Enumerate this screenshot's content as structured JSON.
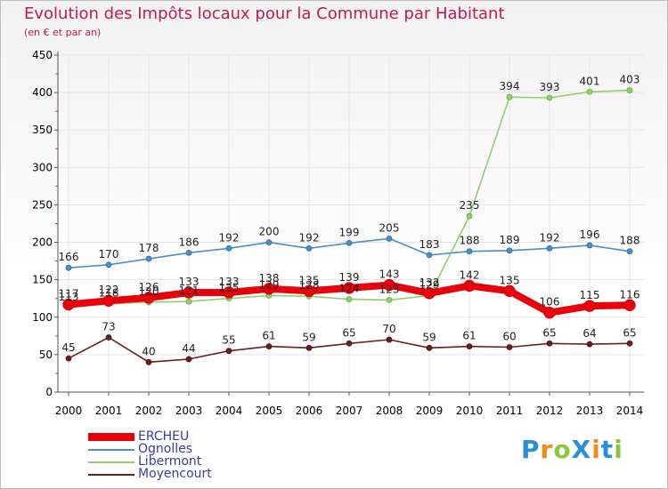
{
  "title": "Evolution des Impôts locaux pour la Commune par Habitant",
  "subtitle": "(en € et par an)",
  "logo": {
    "text": "ProXiti",
    "letters": [
      "P",
      "r",
      "o",
      "X",
      "i",
      "t",
      "i"
    ],
    "colors": [
      "#2a8fd6",
      "#f08a1c",
      "#8cc63f",
      "#2a8fd6",
      "#f08a1c",
      "#2a8fd6",
      "#8cc63f"
    ]
  },
  "chart_data": {
    "type": "line",
    "title": "Evolution des Impôts locaux pour la Commune par Habitant",
    "subtitle": "(en € et par an)",
    "xlabel": "",
    "ylabel": "",
    "x": [
      2000,
      2001,
      2002,
      2003,
      2004,
      2005,
      2006,
      2007,
      2008,
      2009,
      2010,
      2011,
      2012,
      2013,
      2014
    ],
    "ylim": [
      0,
      450
    ],
    "yticks": [
      0,
      50,
      100,
      150,
      200,
      250,
      300,
      350,
      400,
      450
    ],
    "grid": true,
    "legend_position": "bottom-left",
    "series": [
      {
        "name": "ERCHEU",
        "color": "#e8000b",
        "style": "thick",
        "values": [
          117,
          122,
          126,
          133,
          133,
          138,
          135,
          139,
          143,
          132,
          142,
          135,
          106,
          115,
          116
        ]
      },
      {
        "name": "Ognolles",
        "color": "#4a8fc9",
        "style": "thin",
        "values": [
          166,
          170,
          178,
          186,
          192,
          200,
          192,
          199,
          205,
          183,
          188,
          189,
          192,
          196,
          188
        ]
      },
      {
        "name": "Libermont",
        "color": "#8fd16a",
        "style": "thin",
        "values": [
          113,
          118,
          120,
          121,
          125,
          129,
          128,
          124,
          123,
          129,
          235,
          394,
          393,
          401,
          403
        ]
      },
      {
        "name": "Moyencourt",
        "color": "#6e1c1c",
        "style": "thin",
        "values": [
          45,
          73,
          40,
          44,
          55,
          61,
          59,
          65,
          70,
          59,
          61,
          60,
          65,
          64,
          65
        ]
      }
    ]
  }
}
